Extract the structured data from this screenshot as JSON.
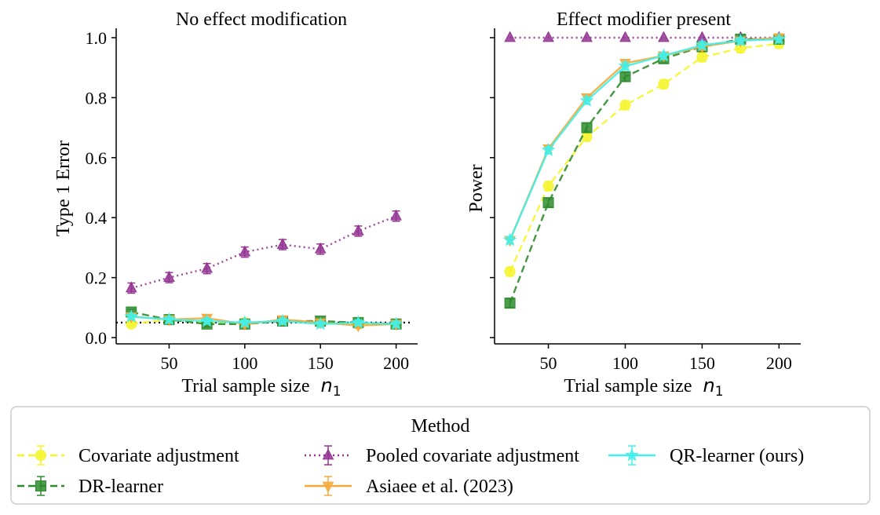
{
  "chart_data": [
    {
      "type": "line",
      "title": "No effect modification",
      "xlabel": "Trial sample size",
      "xlabel_var": "n",
      "xlabel_sub": "1",
      "ylabel": "Type 1 Error",
      "xlim": [
        15,
        208
      ],
      "ylim": [
        0.0,
        1.0
      ],
      "x_ticks": [
        "50",
        "100",
        "150",
        "200"
      ],
      "y_ticks": [
        "0.0",
        "0.2",
        "0.4",
        "0.6",
        "0.8",
        "1.0"
      ],
      "reference_line": 0.05,
      "x": [
        25,
        50,
        75,
        100,
        125,
        150,
        175,
        200
      ],
      "series": [
        {
          "key": "cov",
          "values": [
            0.045,
            0.06,
            0.05,
            0.05,
            0.055,
            0.05,
            0.045,
            0.045
          ],
          "err": 0.007
        },
        {
          "key": "pooled",
          "values": [
            0.165,
            0.2,
            0.23,
            0.285,
            0.31,
            0.295,
            0.355,
            0.405
          ],
          "err": 0.017
        },
        {
          "key": "dr",
          "values": [
            0.085,
            0.06,
            0.045,
            0.045,
            0.055,
            0.055,
            0.05,
            0.045
          ],
          "err": 0.009
        },
        {
          "key": "asiaee",
          "values": [
            0.07,
            0.06,
            0.065,
            0.045,
            0.06,
            0.05,
            0.04,
            0.045
          ],
          "err": 0.009
        },
        {
          "key": "qr",
          "values": [
            0.07,
            0.06,
            0.055,
            0.05,
            0.055,
            0.045,
            0.05,
            0.045
          ],
          "err": 0.009
        }
      ]
    },
    {
      "type": "line",
      "title": "Effect modifier present",
      "xlabel": "Trial sample size",
      "xlabel_var": "n",
      "xlabel_sub": "1",
      "ylabel": "Power",
      "xlim": [
        15,
        208
      ],
      "ylim": [
        0.0,
        1.0
      ],
      "x_ticks": [
        "50",
        "100",
        "150",
        "200"
      ],
      "x": [
        25,
        50,
        75,
        100,
        125,
        150,
        175,
        200
      ],
      "series": [
        {
          "key": "cov",
          "values": [
            0.22,
            0.505,
            0.67,
            0.775,
            0.845,
            0.935,
            0.965,
            0.98
          ],
          "err": 0.015
        },
        {
          "key": "pooled",
          "values": [
            1.0,
            1.0,
            1.0,
            1.0,
            1.0,
            1.0,
            1.0,
            1.0
          ],
          "err": 0.0
        },
        {
          "key": "dr",
          "values": [
            0.115,
            0.45,
            0.7,
            0.87,
            0.93,
            0.97,
            0.995,
            0.995
          ],
          "err": 0.015
        },
        {
          "key": "asiaee",
          "values": [
            0.325,
            0.63,
            0.8,
            0.915,
            0.94,
            0.97,
            0.99,
            1.0
          ],
          "err": 0.012
        },
        {
          "key": "qr",
          "values": [
            0.325,
            0.625,
            0.79,
            0.905,
            0.94,
            0.975,
            0.99,
            0.995
          ],
          "err": 0.012
        }
      ]
    }
  ],
  "legend": {
    "title": "Method",
    "items": [
      {
        "key": "cov",
        "label": "Covariate adjustment",
        "color": "#f5f52a",
        "marker": "circle",
        "dash": "dashed"
      },
      {
        "key": "pooled",
        "label": "Pooled covariate adjustment",
        "color": "#933492",
        "marker": "triangle-up",
        "dash": "dotted"
      },
      {
        "key": "qr",
        "label": "QR-learner (ours)",
        "color": "#41f0ea",
        "marker": "star",
        "dash": "solid"
      },
      {
        "key": "dr",
        "label": "DR-learner",
        "color": "#2e8c2e",
        "marker": "square",
        "dash": "dashed"
      },
      {
        "key": "asiaee",
        "label": "Asiaee et al. (2023)",
        "color": "#f5a93a",
        "marker": "triangle-down",
        "dash": "solid"
      }
    ]
  }
}
